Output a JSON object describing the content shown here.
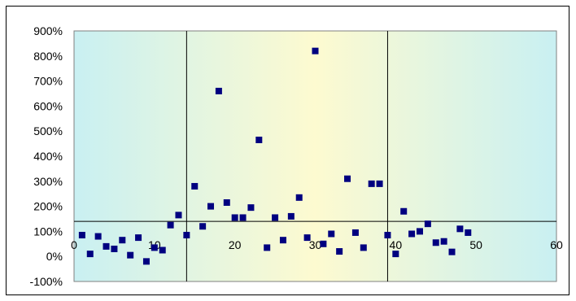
{
  "chart_data": {
    "type": "scatter",
    "title": "",
    "xlabel": "",
    "ylabel": "",
    "xlim": [
      0,
      60
    ],
    "ylim": [
      -100,
      900
    ],
    "x_ticks": [
      0,
      10,
      20,
      30,
      40,
      50,
      60
    ],
    "y_ticks": [
      -100,
      0,
      100,
      200,
      300,
      400,
      500,
      600,
      700,
      800,
      900
    ],
    "y_tick_suffix": "%",
    "vertical_lines_x": [
      14,
      39
    ],
    "horizontal_line_y": 140,
    "grid": false,
    "legend": "none",
    "marker": "square",
    "colors": {
      "marker": "#000080",
      "plot_bg_edge": "#c9f0f2",
      "plot_bg_center": "#fdfad0"
    },
    "series": [
      {
        "x": [
          1,
          2,
          3,
          4,
          5,
          6,
          7,
          8,
          9,
          10,
          11,
          12,
          13,
          14,
          15,
          16,
          17,
          18,
          19,
          20,
          21,
          22,
          23,
          24,
          25,
          26,
          27,
          28,
          29,
          30,
          31,
          32,
          33,
          34,
          35,
          36,
          37,
          38,
          39,
          40,
          41,
          42,
          43,
          44,
          45,
          46,
          47,
          48,
          49
        ],
        "y": [
          85,
          10,
          80,
          40,
          30,
          65,
          5,
          75,
          -20,
          35,
          25,
          125,
          165,
          85,
          280,
          120,
          200,
          660,
          215,
          155,
          155,
          195,
          465,
          35,
          155,
          65,
          160,
          235,
          75,
          820,
          50,
          90,
          20,
          310,
          95,
          35,
          290,
          290,
          85,
          10,
          180,
          90,
          100,
          130,
          55,
          60,
          18,
          110,
          95
        ]
      }
    ]
  }
}
